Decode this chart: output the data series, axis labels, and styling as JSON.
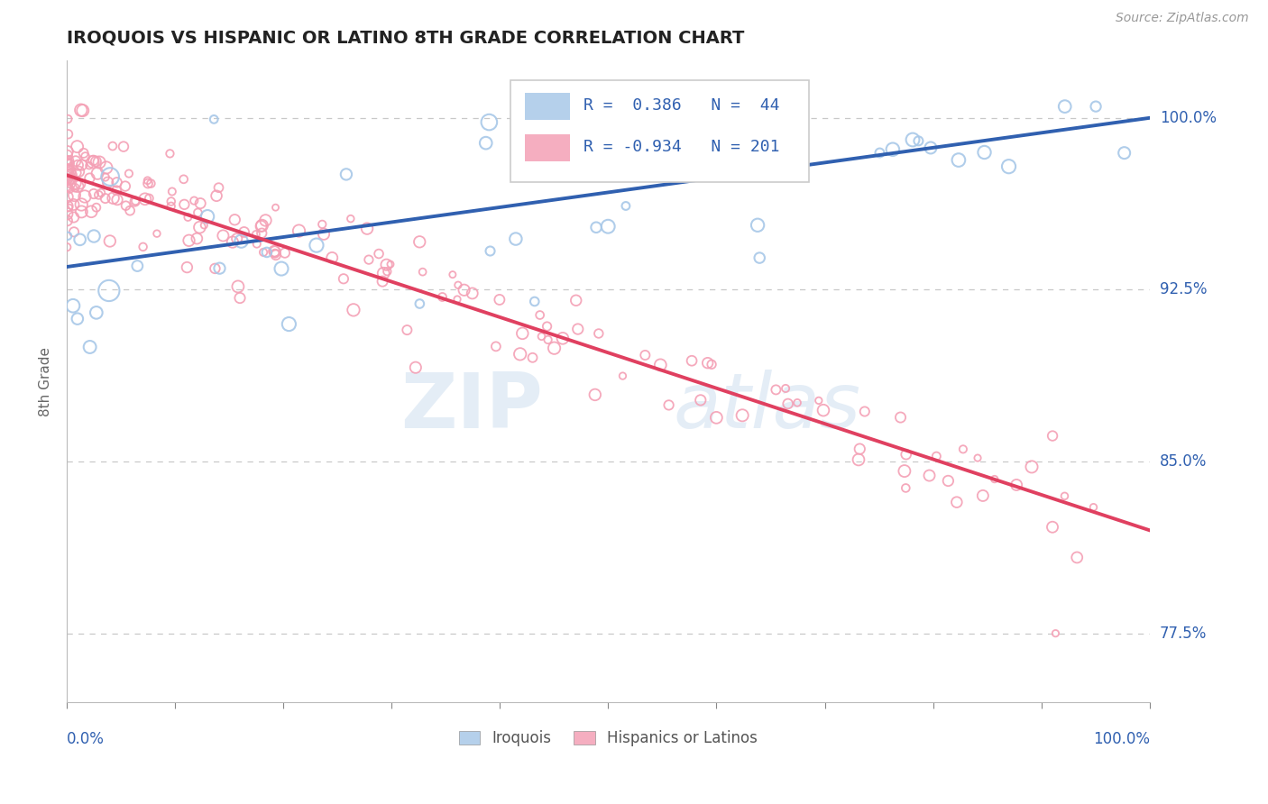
{
  "title": "IROQUOIS VS HISPANIC OR LATINO 8TH GRADE CORRELATION CHART",
  "source_text": "Source: ZipAtlas.com",
  "ylabel": "8th Grade",
  "ytick_labels": [
    "77.5%",
    "85.0%",
    "92.5%",
    "100.0%"
  ],
  "ytick_values": [
    0.775,
    0.85,
    0.925,
    1.0
  ],
  "legend_labels": [
    "Iroquois",
    "Hispanics or Latinos"
  ],
  "legend_R": [
    0.386,
    -0.934
  ],
  "legend_N": [
    44,
    201
  ],
  "blue_color": "#a8c8e8",
  "pink_color": "#f4a0b5",
  "blue_line_color": "#3060b0",
  "pink_line_color": "#e04060",
  "watermark_zip": "ZIP",
  "watermark_atlas": "atlas",
  "background_color": "#ffffff",
  "grid_color": "#c8c8c8",
  "xlim": [
    0.0,
    1.0
  ],
  "ylim": [
    0.745,
    1.025
  ],
  "blue_line_x0": 0.0,
  "blue_line_x1": 1.0,
  "blue_line_y0": 0.935,
  "blue_line_y1": 1.0,
  "pink_line_x0": 0.0,
  "pink_line_x1": 1.0,
  "pink_line_y0": 0.975,
  "pink_line_y1": 0.82,
  "legend_text_color": "#3060b0",
  "axis_label_color": "#3060b0",
  "ylabel_color": "#666666"
}
